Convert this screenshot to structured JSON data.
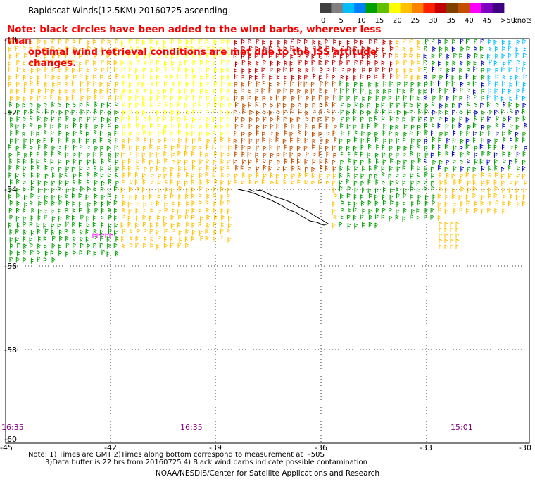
{
  "title": "Rapidscat Winds(12.5KM) 20160725 ascending",
  "note": {
    "line1": "Note: black circles have been added to the wind barbs, wherever less than",
    "line2": "optimal wind retrieval conditions are met due to the ISS attitude changes."
  },
  "scale": {
    "labels": [
      "0",
      "5",
      "10",
      "15",
      "20",
      "25",
      "30",
      "35",
      "40",
      "45",
      ">50"
    ],
    "unit": "knots",
    "colors": [
      "#404040",
      "#808080",
      "#00bfff",
      "#0080ff",
      "#00a000",
      "#60c000",
      "#ffff00",
      "#ffc000",
      "#ff8000",
      "#ff2000",
      "#c00000",
      "#804000",
      "#c05000",
      "#ff00ff",
      "#8000c0",
      "#400080"
    ]
  },
  "lat_labels": [
    "-50",
    "-52",
    "-54",
    "-56",
    "-58",
    "-60"
  ],
  "lon_labels": [
    "-45",
    "-42",
    "-39",
    "-36",
    "-33",
    "-30"
  ],
  "times": [
    "16:35",
    "16:35",
    "15:01"
  ],
  "footer": {
    "line1": "Note: 1) Times are GMT 2)Times along bottom correspond to measurement at ~50S",
    "line2": "3)Data buffer is 22 hrs from 20160725 4) Black wind barbs indicate possible contamination",
    "line3": "NOAA/NESDIS/Center for Satellite Applications and Research"
  }
}
